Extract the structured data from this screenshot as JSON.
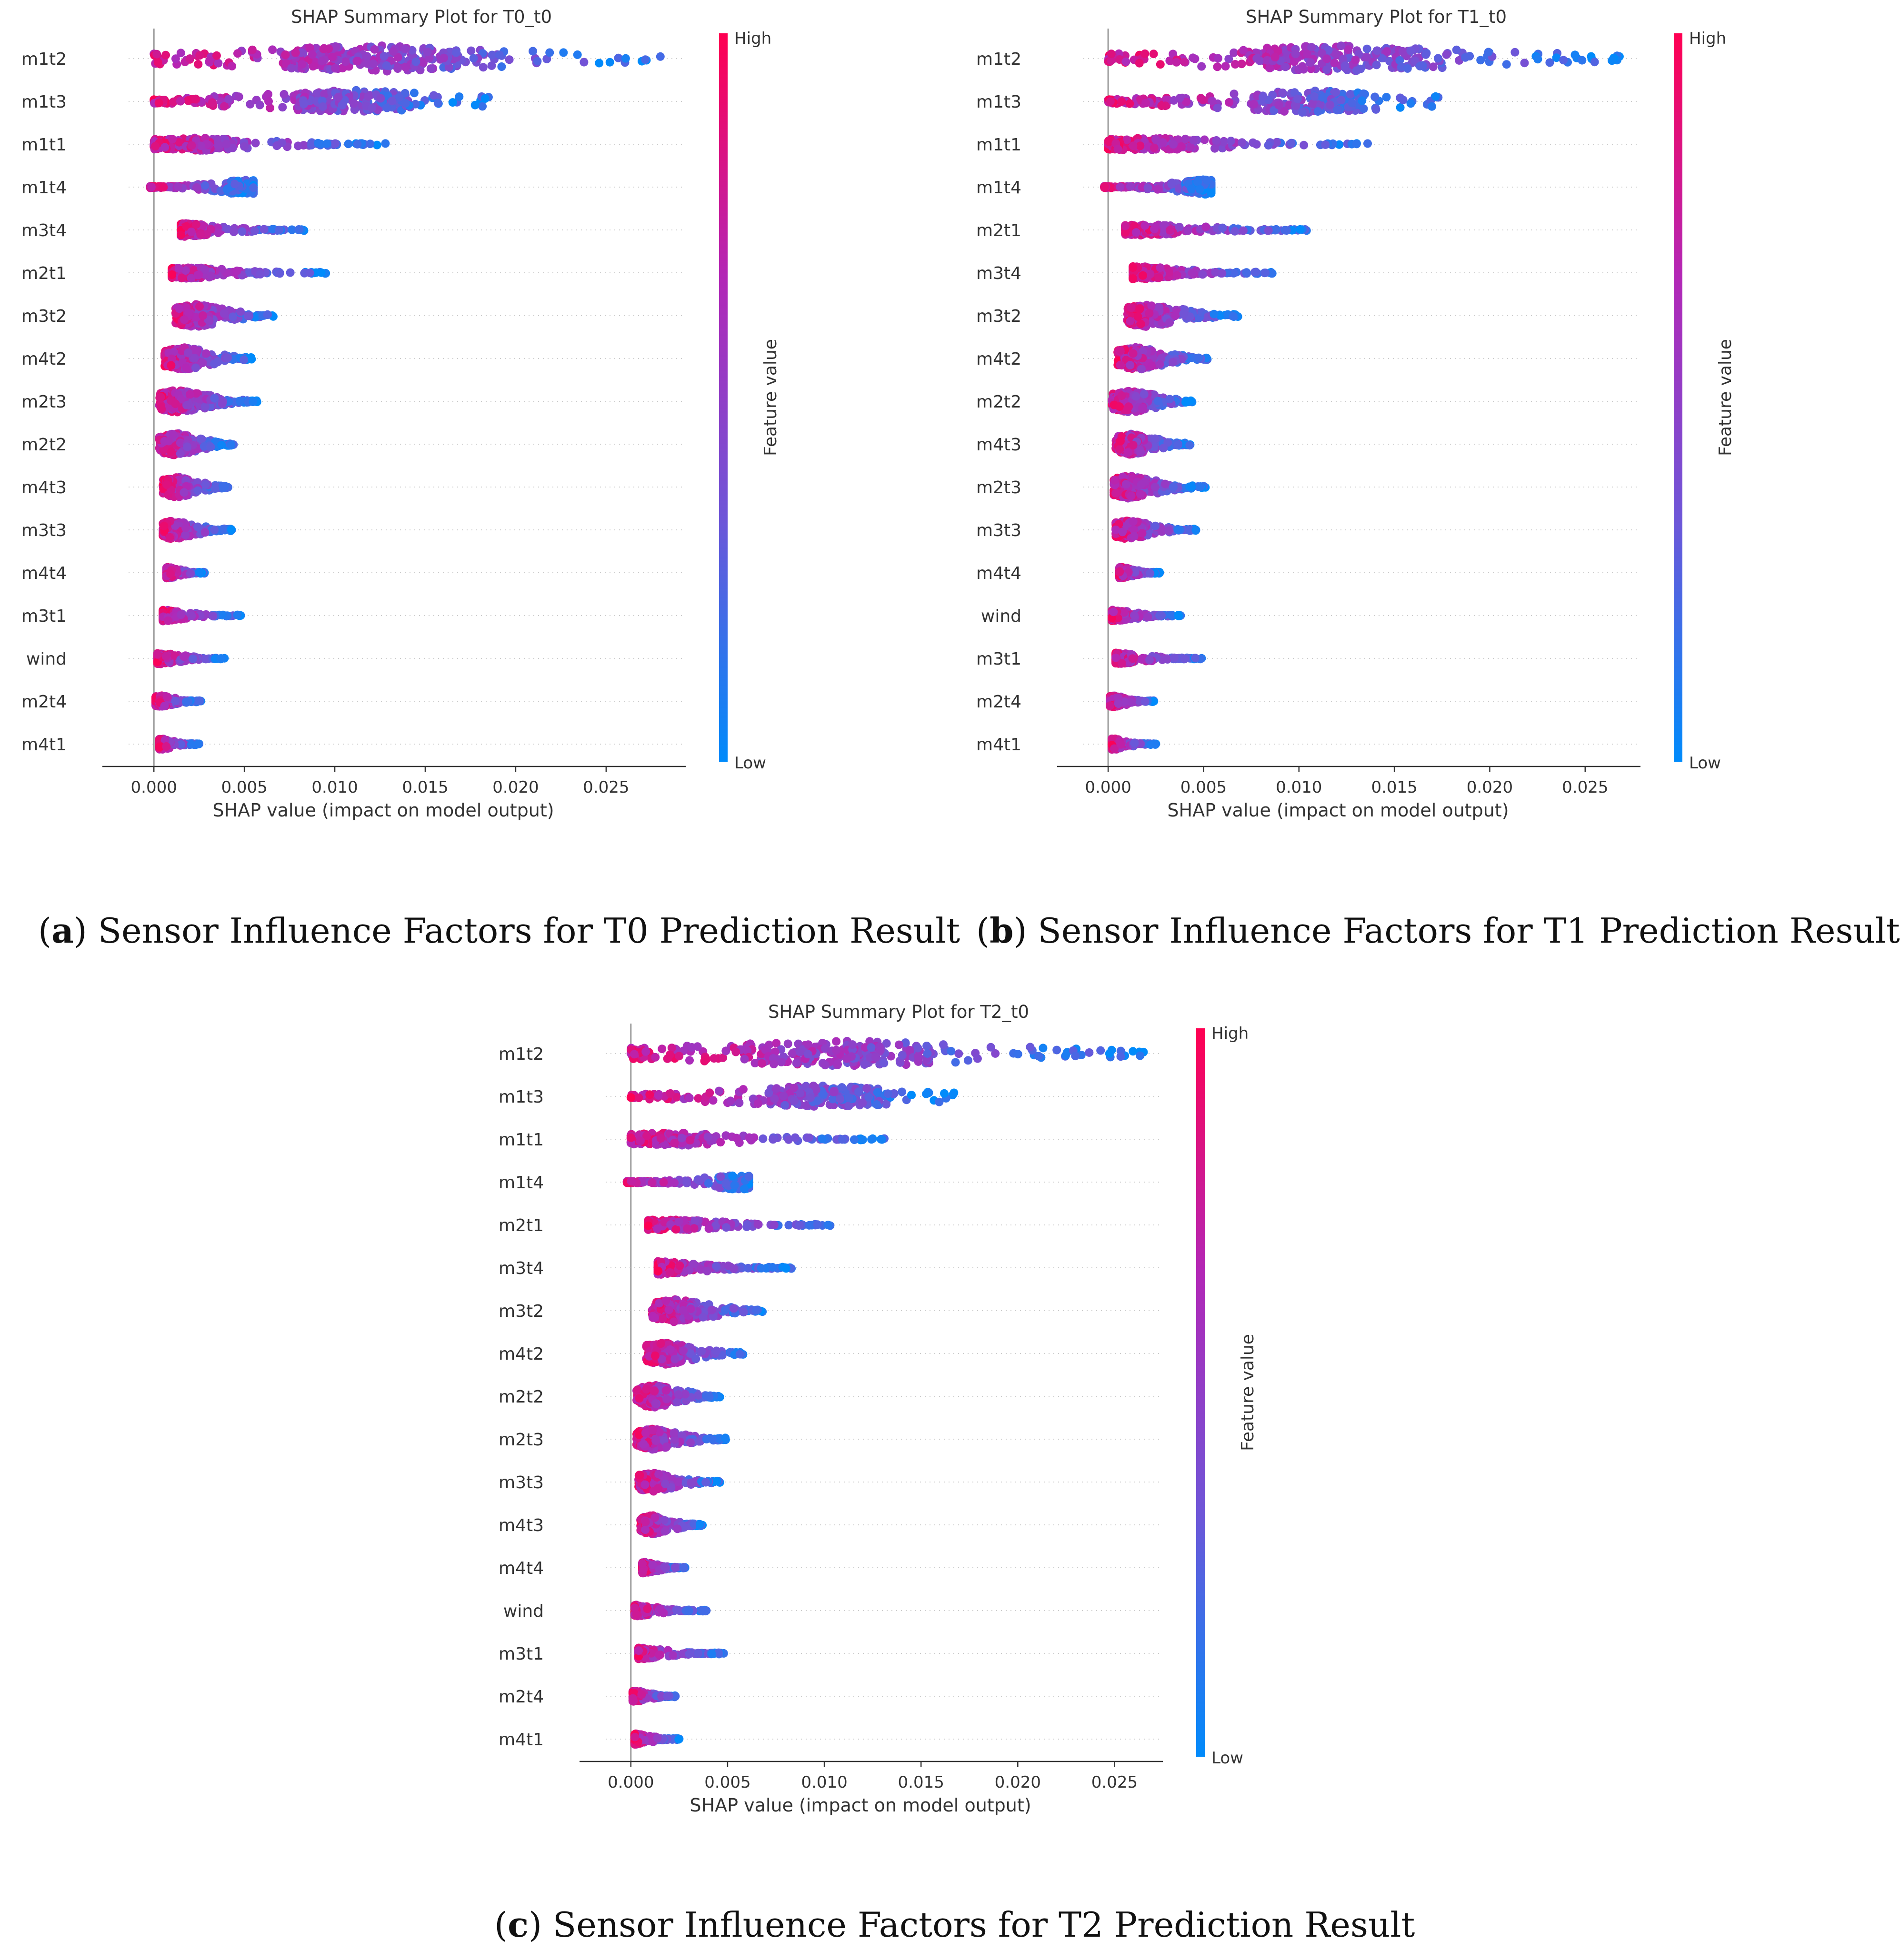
{
  "colorbar": {
    "high_label": "High",
    "low_label": "Low",
    "title": "Feature value",
    "colors": [
      "#008bfb",
      "#6e56d8",
      "#b327b6",
      "#ff0052"
    ]
  },
  "chart_data": [
    {
      "id": "a",
      "type": "scatter",
      "subtype": "shap-beeswarm",
      "title": "SHAP Summary Plot for T0_t0",
      "xlabel": "SHAP value (impact on model output)",
      "xlim": [
        -0.0014,
        0.0294
      ],
      "xticks": [
        0.0,
        0.005,
        0.01,
        0.015,
        0.02,
        0.025
      ],
      "xtick_labels": [
        "0.000",
        "0.005",
        "0.010",
        "0.015",
        "0.020",
        "0.025"
      ],
      "features": [
        {
          "name": "m1t2",
          "min": 0.0,
          "max": 0.028,
          "peak": 0.012,
          "width": 0.7
        },
        {
          "name": "m1t3",
          "min": 0.0,
          "max": 0.0185,
          "peak": 0.011,
          "width": 0.6
        },
        {
          "name": "m1t1",
          "min": 0.0,
          "max": 0.0128,
          "peak": 0.0022,
          "width": 0.35
        },
        {
          "name": "m1t4",
          "min": -0.0002,
          "max": 0.0055,
          "peak": 0.005,
          "width": 0.4
        },
        {
          "name": "m3t4",
          "min": 0.0015,
          "max": 0.0083,
          "peak": 0.0017,
          "width": 0.35
        },
        {
          "name": "m2t1",
          "min": 0.001,
          "max": 0.0095,
          "peak": 0.0018,
          "width": 0.3
        },
        {
          "name": "m3t2",
          "min": 0.0012,
          "max": 0.0066,
          "peak": 0.0023,
          "width": 0.6
        },
        {
          "name": "m4t2",
          "min": 0.0006,
          "max": 0.0054,
          "peak": 0.0017,
          "width": 0.6
        },
        {
          "name": "m2t3",
          "min": 0.0003,
          "max": 0.0057,
          "peak": 0.0013,
          "width": 0.6
        },
        {
          "name": "m2t2",
          "min": 0.0003,
          "max": 0.0044,
          "peak": 0.0012,
          "width": 0.6
        },
        {
          "name": "m4t3",
          "min": 0.0005,
          "max": 0.0041,
          "peak": 0.0013,
          "width": 0.55
        },
        {
          "name": "m3t3",
          "min": 0.0005,
          "max": 0.0043,
          "peak": 0.0011,
          "width": 0.5
        },
        {
          "name": "m4t4",
          "min": 0.0007,
          "max": 0.0028,
          "peak": 0.0008,
          "width": 0.3
        },
        {
          "name": "m3t1",
          "min": 0.0005,
          "max": 0.0048,
          "peak": 0.0006,
          "width": 0.3
        },
        {
          "name": "wind",
          "min": 0.0002,
          "max": 0.0039,
          "peak": 0.0004,
          "width": 0.3
        },
        {
          "name": "m2t4",
          "min": 0.0001,
          "max": 0.0026,
          "peak": 0.0004,
          "width": 0.3
        },
        {
          "name": "m4t1",
          "min": 0.0003,
          "max": 0.0025,
          "peak": 0.0004,
          "width": 0.3
        }
      ]
    },
    {
      "id": "b",
      "type": "scatter",
      "subtype": "shap-beeswarm",
      "title": "SHAP Summary Plot for T1_t0",
      "xlabel": "SHAP value (impact on model output)",
      "xlim": [
        -0.0013,
        0.0279
      ],
      "xticks": [
        0.0,
        0.005,
        0.01,
        0.015,
        0.02,
        0.025
      ],
      "xtick_labels": [
        "0.000",
        "0.005",
        "0.010",
        "0.015",
        "0.020",
        "0.025"
      ],
      "features": [
        {
          "name": "m1t2",
          "min": 0.0,
          "max": 0.0268,
          "peak": 0.012,
          "width": 0.7
        },
        {
          "name": "m1t3",
          "min": 0.0,
          "max": 0.0173,
          "peak": 0.0105,
          "width": 0.6
        },
        {
          "name": "m1t1",
          "min": 0.0,
          "max": 0.0136,
          "peak": 0.0022,
          "width": 0.35
        },
        {
          "name": "m1t4",
          "min": -0.0002,
          "max": 0.0054,
          "peak": 0.005,
          "width": 0.4
        },
        {
          "name": "m2t1",
          "min": 0.0009,
          "max": 0.0104,
          "peak": 0.002,
          "width": 0.3
        },
        {
          "name": "m3t4",
          "min": 0.0013,
          "max": 0.0086,
          "peak": 0.0016,
          "width": 0.35
        },
        {
          "name": "m3t2",
          "min": 0.001,
          "max": 0.0068,
          "peak": 0.0021,
          "width": 0.6
        },
        {
          "name": "m4t2",
          "min": 0.0005,
          "max": 0.0052,
          "peak": 0.0015,
          "width": 0.6
        },
        {
          "name": "m2t2",
          "min": 0.0002,
          "max": 0.0044,
          "peak": 0.0012,
          "width": 0.6
        },
        {
          "name": "m4t3",
          "min": 0.0004,
          "max": 0.0043,
          "peak": 0.0012,
          "width": 0.55
        },
        {
          "name": "m2t3",
          "min": 0.0003,
          "max": 0.0051,
          "peak": 0.0011,
          "width": 0.6
        },
        {
          "name": "m3t3",
          "min": 0.0004,
          "max": 0.0046,
          "peak": 0.0011,
          "width": 0.5
        },
        {
          "name": "m4t4",
          "min": 0.0006,
          "max": 0.0027,
          "peak": 0.0007,
          "width": 0.3
        },
        {
          "name": "wind",
          "min": 0.0002,
          "max": 0.0038,
          "peak": 0.0003,
          "width": 0.3
        },
        {
          "name": "m3t1",
          "min": 0.0004,
          "max": 0.0049,
          "peak": 0.0005,
          "width": 0.3
        },
        {
          "name": "m2t4",
          "min": 0.0001,
          "max": 0.0024,
          "peak": 0.0003,
          "width": 0.3
        },
        {
          "name": "m4t1",
          "min": 0.0002,
          "max": 0.0025,
          "peak": 0.0003,
          "width": 0.3
        }
      ]
    },
    {
      "id": "c",
      "type": "scatter",
      "subtype": "shap-beeswarm",
      "title": "SHAP Summary Plot for T2_t0",
      "xlabel": "SHAP value (impact on model output)",
      "xlim": [
        -0.0013,
        0.0275
      ],
      "xticks": [
        0.0,
        0.005,
        0.01,
        0.015,
        0.02,
        0.025
      ],
      "xtick_labels": [
        "0.000",
        "0.005",
        "0.010",
        "0.015",
        "0.020",
        "0.025"
      ],
      "features": [
        {
          "name": "m1t2",
          "min": 0.0,
          "max": 0.0265,
          "peak": 0.011,
          "width": 0.7
        },
        {
          "name": "m1t3",
          "min": 0.0,
          "max": 0.0167,
          "peak": 0.01,
          "width": 0.6
        },
        {
          "name": "m1t1",
          "min": 0.0,
          "max": 0.0131,
          "peak": 0.0021,
          "width": 0.35
        },
        {
          "name": "m1t4",
          "min": -0.0002,
          "max": 0.0061,
          "peak": 0.0055,
          "width": 0.4
        },
        {
          "name": "m2t1",
          "min": 0.0009,
          "max": 0.0103,
          "peak": 0.0019,
          "width": 0.3
        },
        {
          "name": "m3t4",
          "min": 0.0014,
          "max": 0.0083,
          "peak": 0.0016,
          "width": 0.35
        },
        {
          "name": "m3t2",
          "min": 0.0011,
          "max": 0.0068,
          "peak": 0.0023,
          "width": 0.6
        },
        {
          "name": "m4t2",
          "min": 0.0008,
          "max": 0.0058,
          "peak": 0.0018,
          "width": 0.6
        },
        {
          "name": "m2t2",
          "min": 0.0003,
          "max": 0.0046,
          "peak": 0.0012,
          "width": 0.6
        },
        {
          "name": "m2t3",
          "min": 0.0003,
          "max": 0.0049,
          "peak": 0.0011,
          "width": 0.55
        },
        {
          "name": "m3t3",
          "min": 0.0004,
          "max": 0.0046,
          "peak": 0.0011,
          "width": 0.5
        },
        {
          "name": "m4t3",
          "min": 0.0005,
          "max": 0.0037,
          "peak": 0.0011,
          "width": 0.5
        },
        {
          "name": "m4t4",
          "min": 0.0006,
          "max": 0.0028,
          "peak": 0.0007,
          "width": 0.3
        },
        {
          "name": "wind",
          "min": 0.0002,
          "max": 0.0039,
          "peak": 0.0003,
          "width": 0.3
        },
        {
          "name": "m3t1",
          "min": 0.0004,
          "max": 0.0048,
          "peak": 0.0005,
          "width": 0.3
        },
        {
          "name": "m2t4",
          "min": 0.0001,
          "max": 0.0023,
          "peak": 0.0003,
          "width": 0.3
        },
        {
          "name": "m4t1",
          "min": 0.0002,
          "max": 0.0025,
          "peak": 0.0003,
          "width": 0.3
        }
      ]
    }
  ],
  "captions": [
    {
      "letter": "a",
      "text": "Sensor Influence Factors for T0 Prediction Result"
    },
    {
      "letter": "b",
      "text": "Sensor Influence Factors for T1 Prediction Result"
    },
    {
      "letter": "c",
      "text": "Sensor Influence Factors for T2 Prediction Result"
    }
  ]
}
